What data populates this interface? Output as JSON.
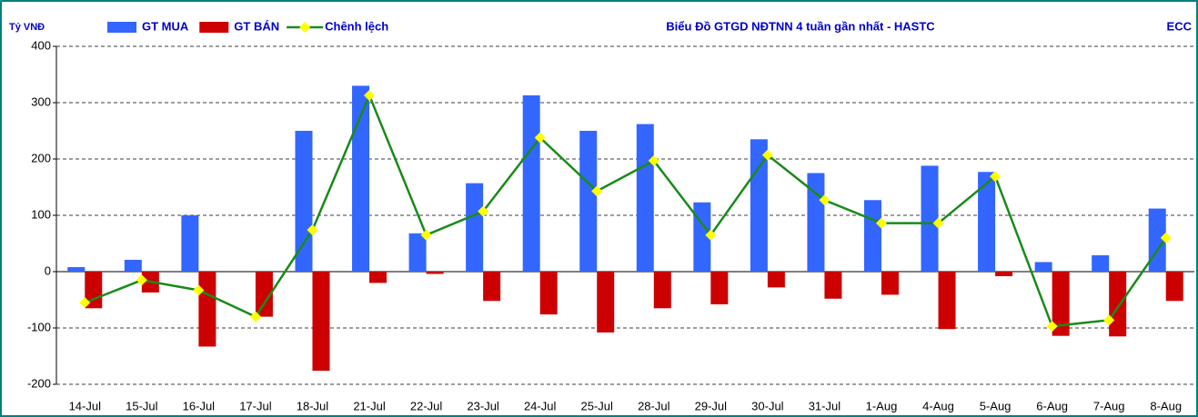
{
  "chart_data": {
    "type": "bar",
    "title": "Biểu Đồ GTGD NĐTNN 4 tuần gần nhất - HASTC",
    "y_label": "Tỷ VNĐ",
    "source": "ECC",
    "categories": [
      "14-Jul",
      "15-Jul",
      "16-Jul",
      "17-Jul",
      "18-Jul",
      "21-Jul",
      "22-Jul",
      "23-Jul",
      "24-Jul",
      "25-Jul",
      "28-Jul",
      "29-Jul",
      "30-Jul",
      "31-Jul",
      "1-Aug",
      "4-Aug",
      "5-Aug",
      "6-Aug",
      "7-Aug",
      "8-Aug"
    ],
    "series": [
      {
        "name": "GT MUA",
        "type": "bar",
        "color": "#3366ff",
        "values": [
          8,
          21,
          100,
          0,
          250,
          330,
          68,
          157,
          313,
          250,
          262,
          123,
          235,
          175,
          127,
          188,
          177,
          17,
          29,
          112
        ]
      },
      {
        "name": "GT BÁN",
        "type": "bar",
        "color": "#cc0000",
        "values": [
          -65,
          -37,
          -133,
          -80,
          -176,
          -20,
          -4,
          -52,
          -76,
          -108,
          -65,
          -58,
          -28,
          -48,
          -41,
          -102,
          -8,
          -114,
          -115,
          -52
        ]
      },
      {
        "name": "Chênh lệch",
        "type": "line",
        "color": "#1a8a1a",
        "marker_color": "#ffff00",
        "values": [
          -55,
          -15,
          -33,
          -80,
          74,
          313,
          65,
          107,
          238,
          143,
          197,
          65,
          207,
          127,
          86,
          86,
          169,
          -97,
          -86,
          60
        ]
      }
    ],
    "ylim": [
      -200,
      400
    ],
    "yticks": [
      -200,
      -100,
      0,
      100,
      200,
      300,
      400
    ],
    "grid": true
  }
}
